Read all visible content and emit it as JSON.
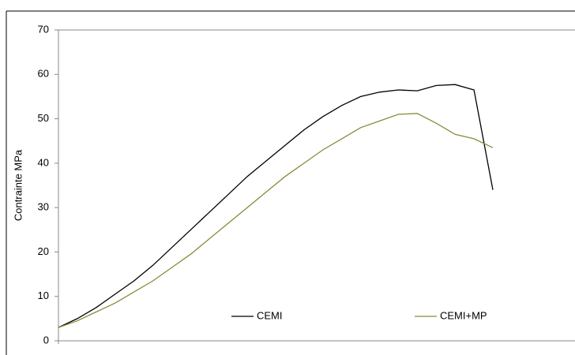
{
  "chart_data": {
    "type": "line",
    "y_label": "Contrainte MPa",
    "categories": [
      null,
      null,
      null,
      null,
      null,
      null,
      null,
      null,
      null,
      null,
      null,
      null,
      null,
      null,
      null,
      null,
      null,
      null,
      null,
      null,
      null,
      null,
      null,
      null
    ],
    "series": [
      {
        "name": "CEMI",
        "color": "#000000",
        "values": [
          3,
          5,
          7.5,
          10.5,
          13.5,
          17,
          21,
          25,
          29,
          33,
          37,
          40.5,
          44,
          47.5,
          50.5,
          53,
          55,
          56,
          56.5,
          56.3,
          57.5,
          57.7,
          56.5,
          34
        ]
      },
      {
        "name": "CEMI+MP",
        "color": "#8b8a3a",
        "values": [
          3,
          4.5,
          6.5,
          8.5,
          11,
          13.5,
          16.5,
          19.5,
          23,
          26.5,
          30,
          33.5,
          37,
          40,
          43,
          45.5,
          48,
          49.5,
          51,
          51.2,
          49,
          46.5,
          45.5,
          43.5
        ]
      }
    ],
    "ylim": [
      0,
      70
    ],
    "yticks": [
      0,
      10,
      20,
      30,
      40,
      50,
      60,
      70
    ],
    "grid": false
  }
}
